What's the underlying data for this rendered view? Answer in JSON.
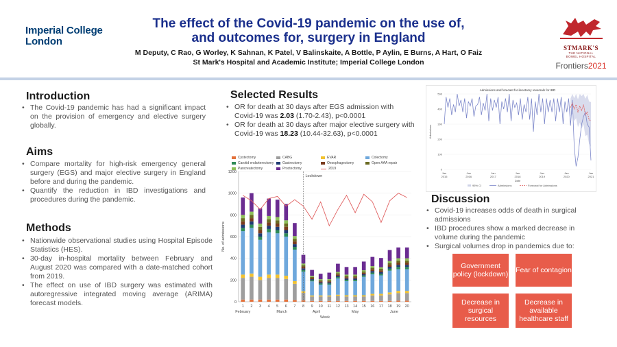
{
  "header": {
    "institution_line1": "Imperial College",
    "institution_line2": "London",
    "title_line1": "The effect of the Covid-19 pandemic on the use of,",
    "title_line2": "and outcomes for, surgery in England",
    "authors": "M Deputy, C Rao, G Worley, K Sahnan, K Patel, V Balinskaite, A Bottle, P Aylin, E Burns, A Hart, O Faiz",
    "affiliation": "St Mark's Hospital and Academic Institute; Imperial College London",
    "hospital_name": "STMARK'S",
    "hospital_sub1": "THE NATIONAL",
    "hospital_sub2": "BOWEL HOSPITAL",
    "frontiers_word": "Frontiers",
    "frontiers_year": "2021"
  },
  "introduction": {
    "heading": "Introduction",
    "bullets": [
      "The Covid-19 pandemic has had a significant impact on the provision of emergency and elective surgery globally."
    ]
  },
  "aims": {
    "heading": "Aims",
    "bullets": [
      "Compare mortality for high-risk emergency general surgery (EGS) and major elective surgery in England before and during the pandemic.",
      "Quantify the reduction in IBD investigations and procedures during the pandemic."
    ]
  },
  "methods": {
    "heading": "Methods",
    "bullets": [
      "Nationwide observational studies using Hospital Episode Statistics (HES).",
      "30-day in-hospital mortality between February and August 2020 was compared with a date-matched cohort from 2019.",
      "The effect on use of IBD surgery was estimated with autoregressive integrated moving average (ARIMA) forecast models."
    ]
  },
  "results": {
    "heading": "Selected Results",
    "b1_pre": "OR for death at 30 days after EGS admission with Covid-19 was ",
    "b1_bold": "2.03",
    "b1_post": " (1.70-2.43), p<0.0001",
    "b2_pre": "OR for death at 30 days after major elective surgery with Covid-19 was ",
    "b2_bold": "18.23",
    "b2_post": " (10.44-32.63), p<0.0001"
  },
  "discussion": {
    "heading": "Discussion",
    "bullets": [
      "Covid-19 increases odds of death in surgical admissions",
      "IBD procedures show a marked decrease in volume during the pandemic",
      "Surgical volumes drop in pandemics due to:"
    ],
    "reasons": [
      "Government policy (lockdown)",
      "Fear of contagion",
      "Decrease in surgical resources",
      "Decrease in available healthcare staff"
    ]
  },
  "chart_data": [
    {
      "type": "bar",
      "stacked": true,
      "ylabel": "No. of admissions",
      "xlabel": "Week",
      "ylim": [
        0,
        1200
      ],
      "yticks": [
        0,
        200,
        400,
        600,
        800,
        1000,
        1200
      ],
      "categories": [
        "1",
        "2",
        "3",
        "4",
        "5",
        "6",
        "7",
        "8",
        "9",
        "10",
        "11",
        "12",
        "13",
        "14",
        "15",
        "16",
        "17",
        "18",
        "19",
        "20"
      ],
      "month_labels": [
        {
          "label": "February",
          "at_week": 1
        },
        {
          "label": "March",
          "at_week": 5.5
        },
        {
          "label": "April",
          "at_week": 9.5
        },
        {
          "label": "May",
          "at_week": 14
        },
        {
          "label": "June",
          "at_week": 18.5
        }
      ],
      "annotation": "Lockdown",
      "annotation_week": 7.5,
      "legend_placement": "top",
      "series": [
        {
          "name": "Cystectomy",
          "color": "#e3713a",
          "values": [
            20,
            20,
            20,
            20,
            20,
            20,
            15,
            12,
            8,
            8,
            8,
            8,
            8,
            8,
            8,
            8,
            8,
            8,
            10,
            10
          ]
        },
        {
          "name": "CABG",
          "color": "#9e9e9e",
          "values": [
            200,
            210,
            180,
            200,
            200,
            190,
            150,
            70,
            40,
            40,
            40,
            45,
            40,
            40,
            40,
            50,
            50,
            60,
            70,
            70
          ]
        },
        {
          "name": "EVAR",
          "color": "#f2c230",
          "values": [
            30,
            30,
            30,
            30,
            30,
            30,
            25,
            15,
            10,
            10,
            10,
            12,
            12,
            12,
            12,
            15,
            15,
            18,
            20,
            20
          ]
        },
        {
          "name": "Colectomy",
          "color": "#6fa8dc",
          "values": [
            400,
            420,
            340,
            390,
            380,
            360,
            290,
            180,
            130,
            100,
            100,
            150,
            130,
            130,
            170,
            180,
            170,
            200,
            200,
            200
          ]
        },
        {
          "name": "Carotid endarterectomy",
          "color": "#2e8b57",
          "values": [
            30,
            30,
            30,
            30,
            30,
            30,
            25,
            15,
            10,
            10,
            10,
            12,
            12,
            12,
            12,
            15,
            15,
            18,
            20,
            20
          ]
        },
        {
          "name": "Gastrectomy",
          "color": "#1f3b73",
          "values": [
            30,
            30,
            30,
            30,
            30,
            30,
            25,
            15,
            10,
            10,
            10,
            12,
            12,
            12,
            12,
            15,
            15,
            18,
            20,
            20
          ]
        },
        {
          "name": "Oesophagectomy",
          "color": "#7a3b1e",
          "values": [
            30,
            30,
            30,
            30,
            30,
            30,
            25,
            15,
            10,
            10,
            10,
            12,
            12,
            12,
            12,
            15,
            15,
            18,
            20,
            20
          ]
        },
        {
          "name": "Open AAA repair",
          "color": "#6b6b23",
          "values": [
            30,
            30,
            30,
            30,
            30,
            30,
            25,
            15,
            10,
            10,
            10,
            12,
            12,
            12,
            12,
            15,
            15,
            18,
            20,
            20
          ]
        },
        {
          "name": "Pancreatectomy",
          "color": "#8dbf5a",
          "values": [
            30,
            30,
            30,
            30,
            30,
            30,
            25,
            15,
            10,
            10,
            10,
            12,
            12,
            12,
            12,
            15,
            15,
            18,
            20,
            20
          ]
        },
        {
          "name": "Proctectomy",
          "color": "#6a2c91",
          "values": [
            160,
            170,
            140,
            160,
            160,
            150,
            120,
            80,
            55,
            50,
            60,
            75,
            70,
            70,
            80,
            85,
            85,
            100,
            100,
            100
          ]
        }
      ],
      "reference_line": {
        "name": "2019",
        "color": "#e06060",
        "values": [
          980,
          930,
          850,
          950,
          970,
          880,
          940,
          880,
          760,
          920,
          700,
          850,
          980,
          820,
          990,
          920,
          730,
          930,
          1000,
          960
        ]
      }
    },
    {
      "type": "line",
      "title": "Admissions and forecast for ileostomy reversals for IBD",
      "ylabel": "Admissions",
      "xlabel": "Date",
      "ylim": [
        0,
        500
      ],
      "yticks": [
        0,
        100,
        200,
        300,
        400,
        500
      ],
      "xtick_labels": [
        "Jan\n2015",
        "Jan\n2016",
        "Jan\n2017",
        "Jan\n2018",
        "Jan\n2019",
        "Jan\n2020",
        "Jan\n2021"
      ],
      "legend": [
        "95% CI",
        "Admissions",
        "Forecast for Admissions"
      ],
      "series": [
        {
          "name": "Admissions",
          "color": "#7b86c9",
          "values": [
            300,
            480,
            410,
            470,
            360,
            430,
            380,
            500,
            420,
            460,
            380,
            470,
            340,
            450,
            420,
            470,
            350,
            420,
            430,
            480,
            360,
            440,
            390,
            500,
            320,
            470,
            390,
            460,
            410,
            480,
            300,
            450,
            400,
            470,
            380,
            500,
            320,
            460,
            410,
            440,
            360,
            470,
            330,
            430,
            380,
            480,
            330,
            470,
            250,
            450,
            360,
            500,
            380,
            470,
            300,
            470,
            380,
            460,
            380,
            470,
            320,
            470,
            380,
            480,
            300,
            450,
            380,
            470,
            290,
            460,
            150,
            20,
            80,
            200,
            300,
            350,
            380,
            300,
            280,
            60
          ]
        },
        {
          "name": "Forecast for Admissions",
          "color": "#e06060",
          "values": [
            410,
            440,
            400,
            430,
            380,
            420,
            390,
            430,
            360,
            380,
            330,
            320
          ]
        }
      ]
    }
  ]
}
